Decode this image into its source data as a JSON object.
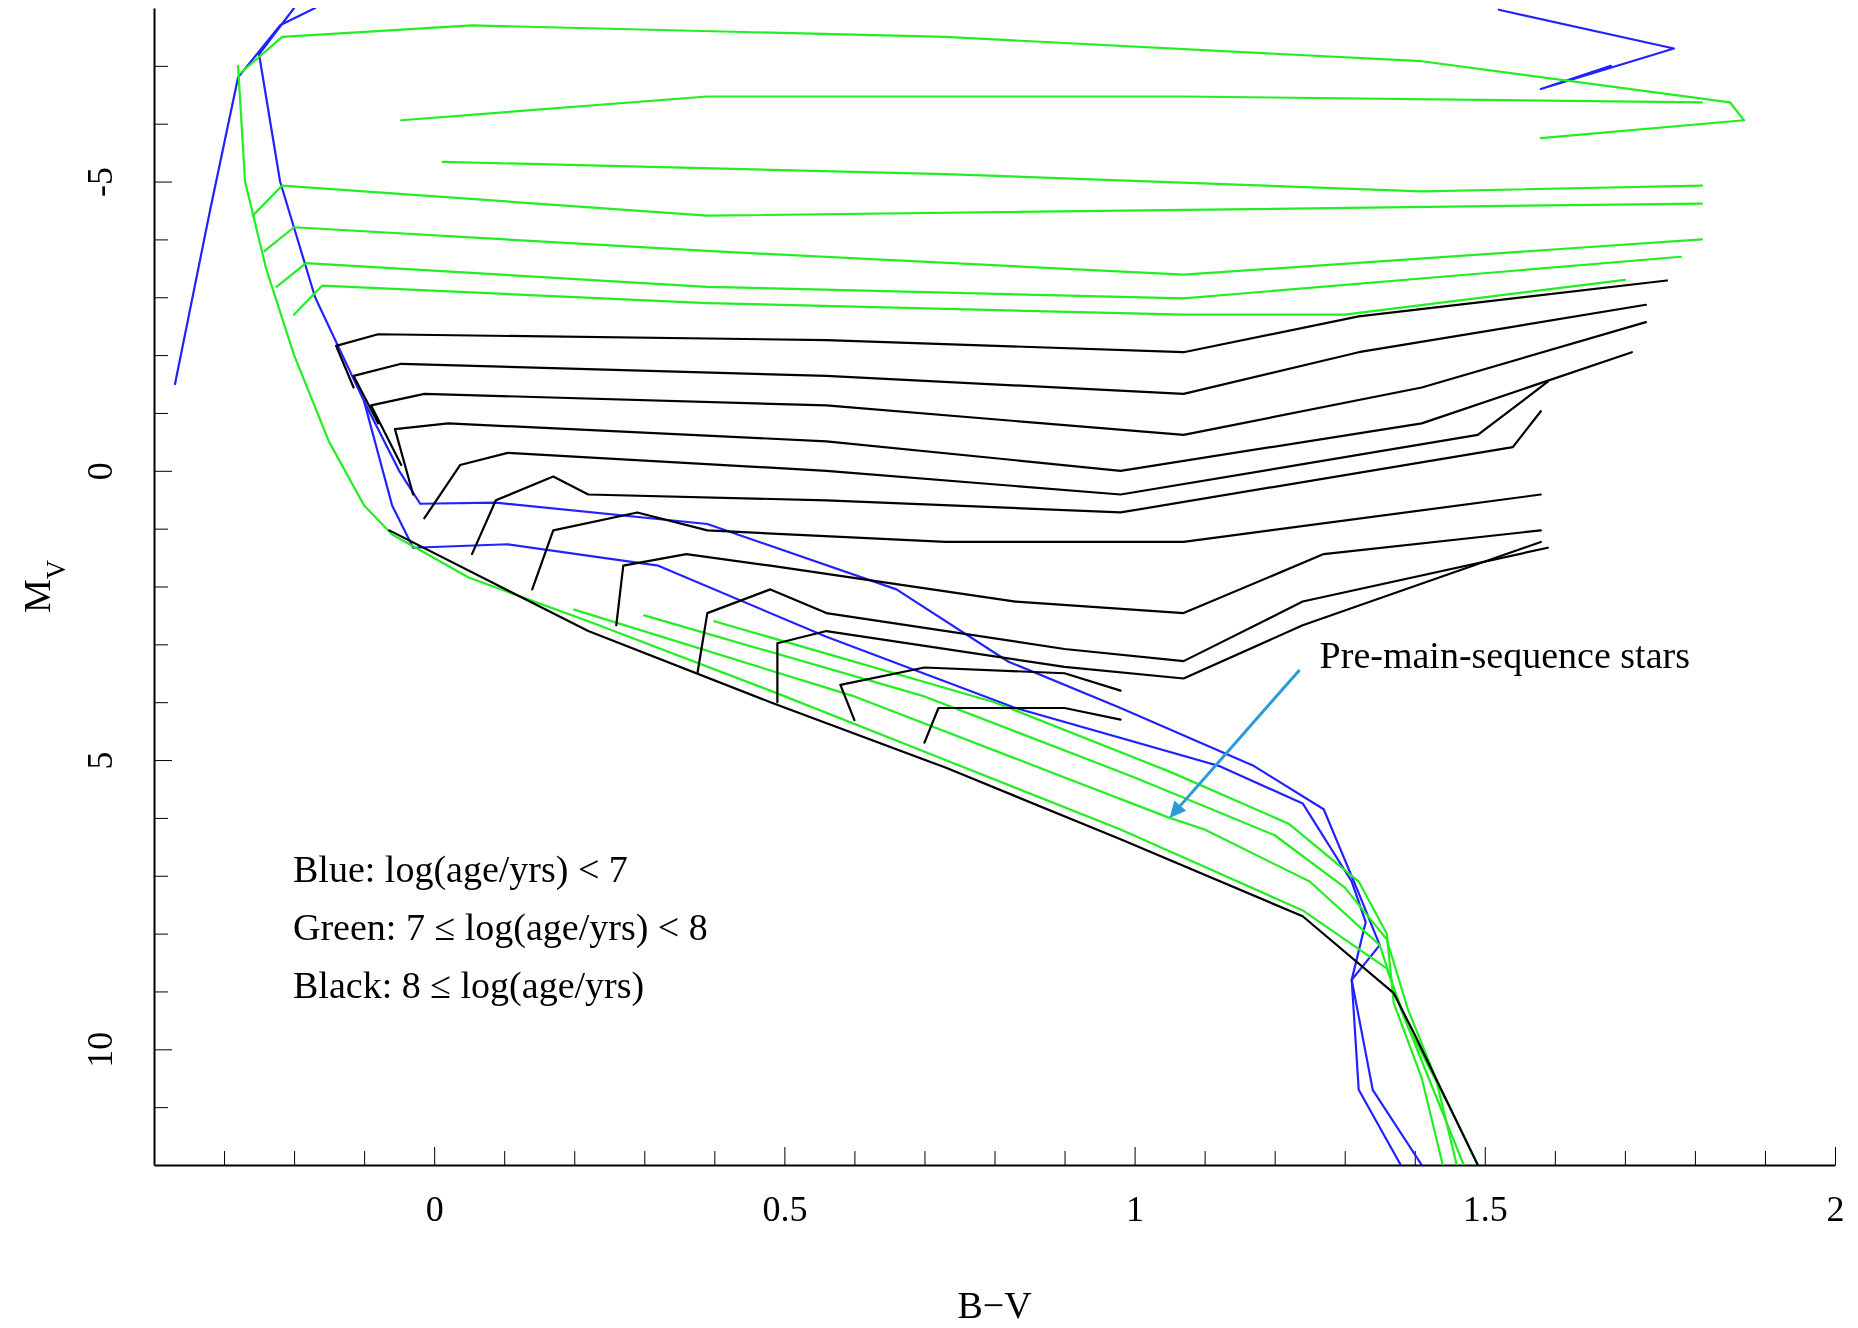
{
  "chart_data": {
    "type": "line",
    "xlabel": "B−V",
    "ylabel": "M$_{V}$",
    "xlim": [
      -0.4,
      2
    ],
    "ylim": [
      12,
      -8
    ],
    "xticks": [
      {
        "value": -0.3,
        "label": null
      },
      {
        "value": -0.2,
        "label": null
      },
      {
        "value": -0.1,
        "label": null
      },
      0,
      {
        "value": 0.1,
        "label": null
      },
      {
        "value": 0.2,
        "label": null
      },
      {
        "value": 0.3,
        "label": null
      },
      {
        "value": 0.4,
        "label": null
      },
      0.5,
      {
        "value": 0.6,
        "label": null
      },
      {
        "value": 0.7,
        "label": null
      },
      {
        "value": 0.8,
        "label": null
      },
      {
        "value": 0.9,
        "label": null
      },
      1,
      {
        "value": 1.1,
        "label": null
      },
      {
        "value": 1.2,
        "label": null
      },
      {
        "value": 1.3,
        "label": null
      },
      {
        "value": 1.4,
        "label": null
      },
      1.5,
      {
        "value": 1.6,
        "label": null
      },
      {
        "value": 1.7,
        "label": null
      },
      {
        "value": 1.8,
        "label": null
      },
      {
        "value": 1.9,
        "label": null
      },
      2
    ],
    "yticks": [
      {
        "value": -7,
        "label": null
      },
      {
        "value": -6,
        "label": null
      },
      -5,
      {
        "value": -4,
        "label": null
      },
      {
        "value": -3,
        "label": null
      },
      {
        "value": -2,
        "label": null
      },
      {
        "value": -1,
        "label": null
      },
      0,
      {
        "value": 1,
        "label": null
      },
      {
        "value": 2,
        "label": null
      },
      {
        "value": 3,
        "label": null
      },
      {
        "value": 4,
        "label": null
      },
      5,
      {
        "value": 6,
        "label": null
      },
      {
        "value": 7,
        "label": null
      },
      {
        "value": 8,
        "label": null
      },
      {
        "value": 9,
        "label": null
      },
      10,
      {
        "value": 11,
        "label": null
      }
    ],
    "annotations": [
      {
        "text": "Pre-main-sequence stars",
        "x": 1.05,
        "y": 6.0
      },
      "Blue: log(age/yrs) < 7",
      "Green: 7 ≤ log(age/yrs) < 8",
      "Black: 8 ≤ log(age/yrs)"
    ],
    "series": [
      {
        "color": "#2222ff",
        "x": [
          -0.37,
          -0.32,
          -0.28,
          -0.22,
          -0.17
        ],
        "values": [
          -1.5,
          -4.5,
          -6.8,
          -7.7,
          -8
        ]
      },
      {
        "color": "#2222ff",
        "x": [
          -0.2,
          -0.25,
          -0.22,
          -0.17,
          -0.1,
          -0.05,
          -0.02,
          0.088,
          0.39,
          0.66,
          0.82,
          0.98,
          1.17,
          1.27,
          1.32,
          1.35,
          1.31,
          1.34,
          1.41
        ],
        "values": [
          -8,
          -7.2,
          -5,
          -3,
          -1.2,
          0,
          0.57,
          0.55,
          0.92,
          2.05,
          3.3,
          4.1,
          5.1,
          5.85,
          7.3,
          8.2,
          8.8,
          10.7,
          12
        ]
      },
      {
        "color": "#2222ff",
        "x": [
          -0.1,
          -0.06,
          -0.03,
          0.105,
          0.32,
          0.56,
          0.83,
          1.12,
          1.24,
          1.31,
          1.33,
          1.31,
          1.32,
          1.38
        ],
        "values": [
          -1.2,
          0.6,
          1.33,
          1.27,
          1.64,
          2.87,
          4.1,
          5.1,
          5.75,
          7.1,
          7.8,
          8.8,
          10.7,
          12
        ]
      },
      {
        "color": "#2222ff",
        "x": [
          1.52,
          1.77,
          1.58,
          1.68
        ],
        "values": [
          -7.97,
          -7.3,
          -6.6,
          -7.0
        ]
      },
      {
        "color": "#22ee22",
        "x": [
          -0.28,
          -0.27,
          -0.24,
          -0.2,
          -0.15,
          -0.1,
          -0.06,
          0.05,
          0.22,
          0.48,
          0.73,
          0.98,
          1.24,
          1.36,
          1.39,
          1.45,
          1.49
        ],
        "values": [
          -7.0,
          -5,
          -3.5,
          -2,
          -0.5,
          0.6,
          1.1,
          1.85,
          2.6,
          3.8,
          5.0,
          6.2,
          7.6,
          8.6,
          9.6,
          11,
          12
        ]
      },
      {
        "color": "#22ee22",
        "x": [
          -0.276,
          -0.217,
          0.054,
          0.73,
          1.41,
          1.85,
          1.87,
          1.58
        ],
        "values": [
          -6.88,
          -7.5,
          -7.7,
          -7.5,
          -7.08,
          -6.37,
          -6.06,
          -5.75
        ]
      },
      {
        "color": "#22ee22",
        "x": [
          -0.047,
          0.39,
          1.07,
          1.81
        ],
        "values": [
          -6.06,
          -6.47,
          -6.47,
          -6.37
        ]
      },
      {
        "color": "#22ee22",
        "x": [
          0.012,
          0.73,
          1.41,
          1.81
        ],
        "values": [
          -5.34,
          -5.13,
          -4.83,
          -4.93
        ]
      },
      {
        "color": "#22ee22",
        "x": [
          -0.259,
          -0.217,
          0.39,
          1.81
        ],
        "values": [
          -4.41,
          -4.93,
          -4.41,
          -4.62
        ]
      },
      {
        "color": "#22ee22",
        "x": [
          -0.242,
          -0.2,
          0.39,
          1.07,
          1.81
        ],
        "values": [
          -3.8,
          -4.21,
          -3.8,
          -3.39,
          -4.0
        ]
      },
      {
        "color": "#22ee22",
        "x": [
          -0.225,
          -0.183,
          0.39,
          1.07,
          1.78
        ],
        "values": [
          -3.18,
          -3.59,
          -3.18,
          -2.98,
          -3.7
        ]
      },
      {
        "color": "#22ee22",
        "x": [
          -0.2,
          -0.16,
          0.39,
          1.07,
          1.3,
          1.7
        ],
        "values": [
          -2.7,
          -3.2,
          -2.9,
          -2.7,
          -2.7,
          -3.3
        ]
      },
      {
        "color": "#22ee22",
        "x": [
          0.2,
          0.6,
          0.9,
          1.05,
          1.1,
          1.25,
          1.35,
          1.38,
          1.42,
          1.47
        ],
        "values": [
          2.4,
          3.9,
          5.3,
          6.0,
          6.2,
          7.1,
          8.2,
          9.3,
          10.5,
          12
        ]
      },
      {
        "color": "#22ee22",
        "x": [
          0.3,
          0.7,
          1.0,
          1.2,
          1.3,
          1.36,
          1.39,
          1.43,
          1.46
        ],
        "values": [
          2.5,
          3.9,
          5.3,
          6.3,
          7.2,
          8.1,
          9.3,
          10.5,
          12
        ]
      },
      {
        "color": "#22ee22",
        "x": [
          0.4,
          0.8,
          1.05,
          1.22,
          1.32,
          1.36,
          1.37,
          1.41,
          1.44
        ],
        "values": [
          2.6,
          4.0,
          5.2,
          6.1,
          7.1,
          8.0,
          9.2,
          10.5,
          12
        ]
      },
      {
        "color": "#000000",
        "x": [
          -0.064,
          0.22,
          0.48,
          0.73,
          0.98,
          1.24,
          1.37,
          1.4,
          1.49
        ],
        "values": [
          1.03,
          2.77,
          4.0,
          5.13,
          6.37,
          7.7,
          9.03,
          9.75,
          12
        ]
      },
      {
        "color": "#000000",
        "x": [
          -0.115,
          -0.14,
          -0.08,
          0.56,
          1.07,
          1.32,
          1.76
        ],
        "values": [
          -1.44,
          -2.16,
          -2.36,
          -2.26,
          -2.05,
          -2.67,
          -3.29
        ]
      },
      {
        "color": "#000000",
        "x": [
          -0.08,
          -0.115,
          -0.047,
          0.56,
          1.07,
          1.32,
          1.73
        ],
        "values": [
          -0.82,
          -1.64,
          -1.85,
          -1.64,
          -1.33,
          -2.05,
          -2.87
        ]
      },
      {
        "color": "#000000",
        "x": [
          -0.047,
          -0.09,
          -0.014,
          0.56,
          1.07,
          1.41,
          1.73
        ],
        "values": [
          -0.1,
          -1.13,
          -1.33,
          -1.13,
          -0.62,
          -1.44,
          -2.57
        ]
      },
      {
        "color": "#000000",
        "x": [
          -0.03,
          -0.056,
          0.02,
          0.56,
          0.98,
          1.41,
          1.71
        ],
        "values": [
          0.41,
          -0.72,
          -0.82,
          -0.51,
          0,
          -0.82,
          -2.05
        ]
      },
      {
        "color": "#000000",
        "x": [
          -0.014,
          0.037,
          0.105,
          0.56,
          0.98,
          1.49,
          1.59
        ],
        "values": [
          0.82,
          -0.1,
          -0.31,
          0,
          0.41,
          -0.62,
          -1.54
        ]
      },
      {
        "color": "#000000",
        "x": [
          0.054,
          0.088,
          0.17,
          0.22,
          0.56,
          0.98,
          1.54,
          1.58
        ],
        "values": [
          1.44,
          0.51,
          0.1,
          0.41,
          0.51,
          0.72,
          -0.41,
          -1.03
        ]
      },
      {
        "color": "#000000",
        "x": [
          0.14,
          0.17,
          0.29,
          0.39,
          0.73,
          1.07,
          1.58
        ],
        "values": [
          2.05,
          1.03,
          0.72,
          1.03,
          1.23,
          1.23,
          0.41
        ]
      },
      {
        "color": "#000000",
        "x": [
          0.26,
          0.27,
          0.36,
          0.48,
          0.83,
          1.07,
          1.27,
          1.58
        ],
        "values": [
          2.67,
          1.64,
          1.44,
          1.64,
          2.26,
          2.46,
          1.44,
          1.03
        ]
      },
      {
        "color": "#000000",
        "x": [
          0.376,
          0.39,
          0.48,
          0.56,
          0.9,
          1.07,
          1.24,
          1.59
        ],
        "values": [
          3.49,
          2.46,
          2.05,
          2.46,
          3.08,
          3.29,
          2.26,
          1.33
        ]
      },
      {
        "color": "#000000",
        "x": [
          0.49,
          0.49,
          0.56,
          0.9,
          1.07,
          1.24,
          1.58
        ],
        "values": [
          4.0,
          2.98,
          2.77,
          3.39,
          3.59,
          2.67,
          1.23
        ]
      },
      {
        "color": "#000000",
        "x": [
          0.6,
          0.58,
          0.7,
          0.9,
          0.98
        ],
        "values": [
          4.31,
          3.7,
          3.4,
          3.5,
          3.8
        ]
      },
      {
        "color": "#000000",
        "x": [
          0.7,
          0.72,
          0.9,
          0.98
        ],
        "values": [
          4.7,
          4.1,
          4.1,
          4.3
        ]
      }
    ]
  }
}
